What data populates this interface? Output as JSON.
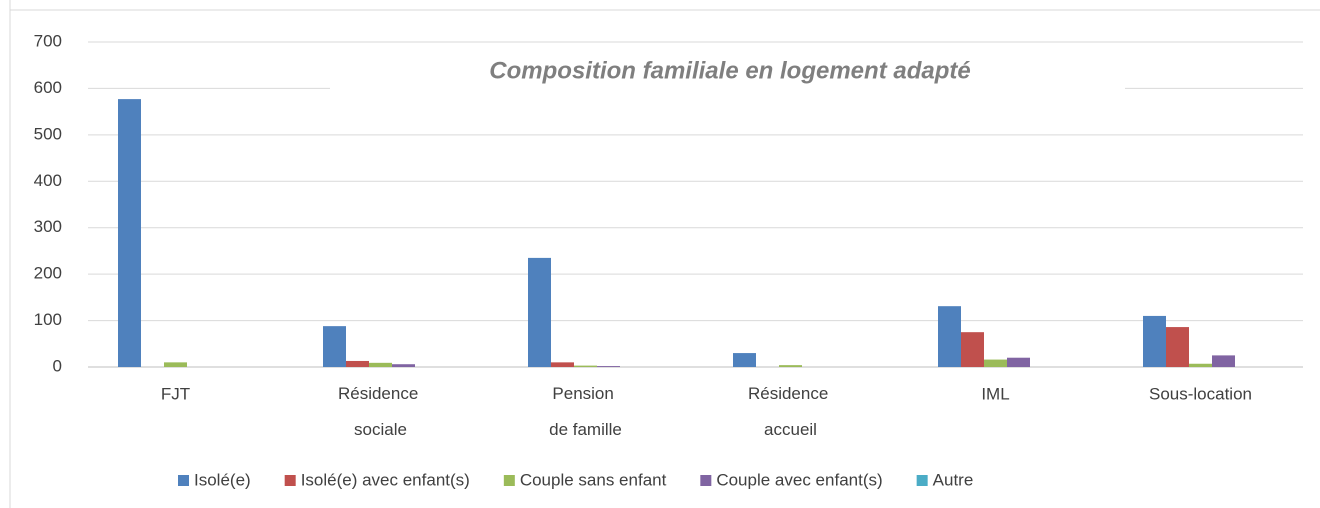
{
  "chart_data": {
    "type": "bar",
    "title": "Composition familiale en logement adapté",
    "categories": [
      "FJT",
      "Résidence sociale",
      "Pension de famille",
      "Résidence accueil",
      "IML",
      "Sous-location"
    ],
    "series": [
      {
        "name": "Isolé(e)",
        "color": "#4f81bd",
        "values": [
          577,
          88,
          235,
          30,
          131,
          110
        ]
      },
      {
        "name": "Isolé(e) avec enfant(s)",
        "color": "#c0504d",
        "values": [
          0,
          13,
          10,
          0,
          75,
          86
        ]
      },
      {
        "name": "Couple sans enfant",
        "color": "#9bbb59",
        "values": [
          10,
          9,
          3,
          4,
          16,
          7
        ]
      },
      {
        "name": "Couple avec enfant(s)",
        "color": "#8064a2",
        "values": [
          0,
          6,
          2,
          0,
          20,
          25
        ]
      },
      {
        "name": "Autre",
        "color": "#4bacc6",
        "values": [
          0,
          0,
          0,
          0,
          0,
          0
        ]
      }
    ],
    "ylim": [
      0,
      700
    ],
    "yticks": [
      0,
      100,
      200,
      300,
      400,
      500,
      600,
      700
    ],
    "grid": true,
    "legend": "bottom"
  }
}
